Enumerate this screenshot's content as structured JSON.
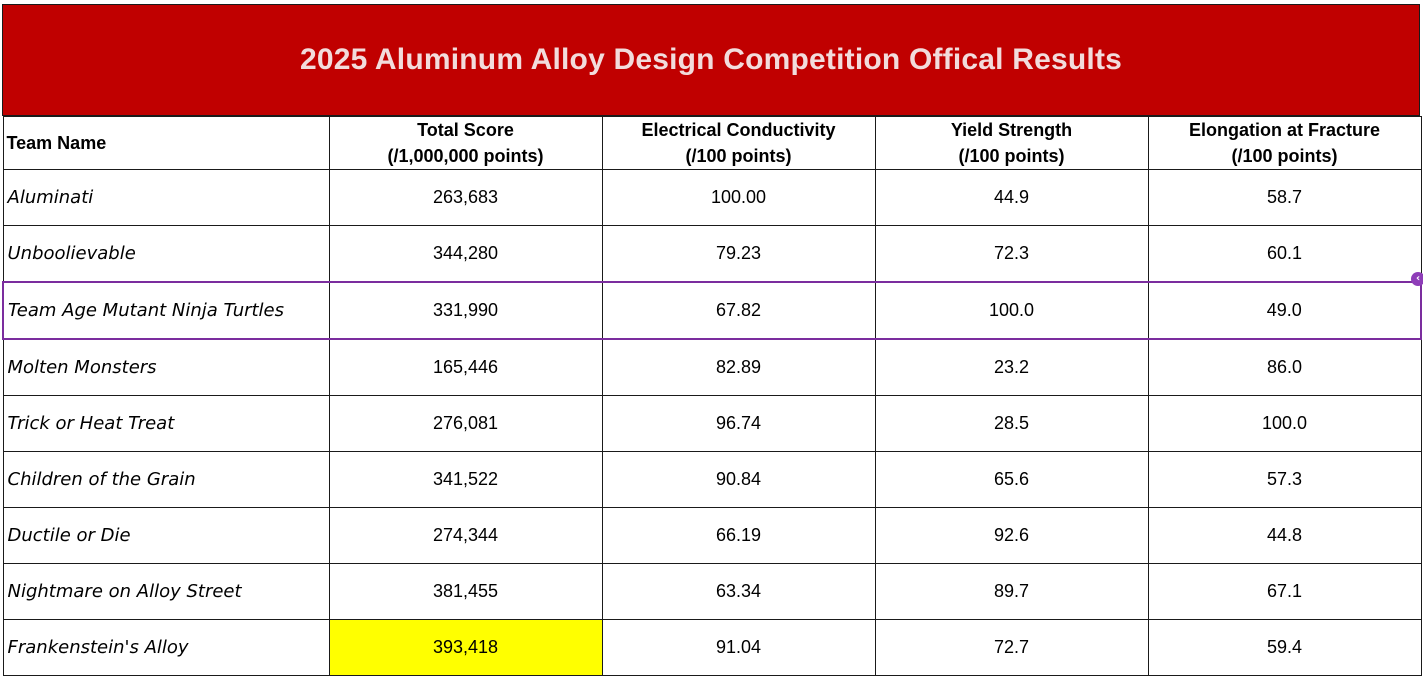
{
  "title": "2025 Aluminum Alloy Design Competition Offical Results",
  "colors": {
    "banner_bg": "#c00000",
    "banner_text": "#f2dcdc",
    "highlight": "#ffff00",
    "selection": "#7b2d9e"
  },
  "columns": [
    {
      "line1": "Team Name",
      "line2": ""
    },
    {
      "line1": "Total Score",
      "line2": "(/1,000,000 points)"
    },
    {
      "line1": "Electrical Conductivity",
      "line2": "(/100 points)"
    },
    {
      "line1": "Yield Strength",
      "line2": "(/100 points)"
    },
    {
      "line1": "Elongation at Fracture",
      "line2": "(/100 points)"
    }
  ],
  "rows": [
    {
      "team": "Aluminati",
      "total": "263,683",
      "conductivity": "100.00",
      "yield": "44.9",
      "elongation": "58.7"
    },
    {
      "team": "Unboolievable",
      "total": "344,280",
      "conductivity": "79.23",
      "yield": "72.3",
      "elongation": "60.1"
    },
    {
      "team": "Team Age Mutant Ninja Turtles",
      "total": "331,990",
      "conductivity": "67.82",
      "yield": "100.0",
      "elongation": "49.0"
    },
    {
      "team": "Molten Monsters",
      "total": "165,446",
      "conductivity": "82.89",
      "yield": "23.2",
      "elongation": "86.0"
    },
    {
      "team": "Trick or Heat Treat",
      "total": "276,081",
      "conductivity": "96.74",
      "yield": "28.5",
      "elongation": "100.0"
    },
    {
      "team": "Children of the Grain",
      "total": "341,522",
      "conductivity": "90.84",
      "yield": "65.6",
      "elongation": "57.3"
    },
    {
      "team": "Ductile or Die",
      "total": "274,344",
      "conductivity": "66.19",
      "yield": "92.6",
      "elongation": "44.8"
    },
    {
      "team": "Nightmare on Alloy Street",
      "total": "381,455",
      "conductivity": "63.34",
      "yield": "89.7",
      "elongation": "67.1"
    },
    {
      "team": "Frankenstein's Alloy",
      "total": "393,418",
      "conductivity": "91.04",
      "yield": "72.7",
      "elongation": "59.4"
    }
  ],
  "selected_row": 2,
  "highlighted_cell": {
    "row": 8,
    "column": "total"
  }
}
